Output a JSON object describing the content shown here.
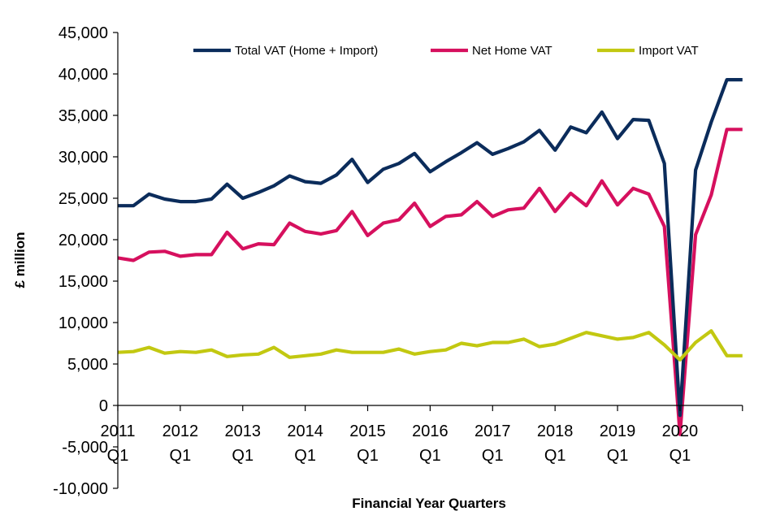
{
  "chart_data": {
    "type": "line",
    "title": "",
    "xlabel": "Financial Year Quarters",
    "ylabel": "£ million",
    "ylim": [
      -10000,
      45000
    ],
    "yticks": [
      "-10,000",
      "-5,000",
      "0",
      "5,000",
      "10,000",
      "15,000",
      "20,000",
      "25,000",
      "30,000",
      "35,000",
      "40,000",
      "45,000"
    ],
    "year_labels": [
      "2011",
      "2012",
      "2013",
      "2014",
      "2015",
      "2016",
      "2017",
      "2018",
      "2019",
      "2020"
    ],
    "quarter_labels": [
      "Q1",
      "Q1",
      "Q1",
      "Q1",
      "Q1",
      "Q1",
      "Q1",
      "Q1",
      "Q1",
      "Q1"
    ],
    "legend_position": "top",
    "grid": false,
    "x": [
      "2011 Q1",
      "2011 Q2",
      "2011 Q3",
      "2011 Q4",
      "2012 Q1",
      "2012 Q2",
      "2012 Q3",
      "2012 Q4",
      "2013 Q1",
      "2013 Q2",
      "2013 Q3",
      "2013 Q4",
      "2014 Q1",
      "2014 Q2",
      "2014 Q3",
      "2014 Q4",
      "2015 Q1",
      "2015 Q2",
      "2015 Q3",
      "2015 Q4",
      "2016 Q1",
      "2016 Q2",
      "2016 Q3",
      "2016 Q4",
      "2017 Q1",
      "2017 Q2",
      "2017 Q3",
      "2017 Q4",
      "2018 Q1",
      "2018 Q2",
      "2018 Q3",
      "2018 Q4",
      "2019 Q1",
      "2019 Q2",
      "2019 Q3",
      "2019 Q4",
      "2020 Q1",
      "2020 Q2",
      "2020 Q3",
      "2020 Q4",
      "2021 Q1"
    ],
    "series": [
      {
        "name": "Total VAT (Home + Import)",
        "color": "#0b2c5b",
        "values": [
          24100,
          24100,
          25500,
          24900,
          24600,
          24600,
          24900,
          26700,
          25000,
          25700,
          26500,
          27700,
          27000,
          26800,
          27800,
          29700,
          26900,
          28500,
          29200,
          30400,
          28200,
          29400,
          30500,
          31700,
          30300,
          31000,
          31800,
          33200,
          30800,
          33600,
          32900,
          35400,
          32200,
          34500,
          34400,
          29200,
          -1200,
          28400,
          34200,
          39300,
          39300
        ]
      },
      {
        "name": "Net Home VAT",
        "color": "#d6105e",
        "values": [
          17800,
          17500,
          18500,
          18600,
          18000,
          18200,
          18200,
          20900,
          18900,
          19500,
          19400,
          22000,
          21000,
          20700,
          21100,
          23400,
          20500,
          22000,
          22400,
          24400,
          21600,
          22800,
          23000,
          24600,
          22800,
          23600,
          23800,
          26200,
          23400,
          25600,
          24100,
          27100,
          24200,
          26200,
          25500,
          21600,
          -3500,
          20600,
          25400,
          33300,
          33300
        ]
      },
      {
        "name": "Import VAT",
        "color": "#c2c811",
        "values": [
          6400,
          6500,
          7000,
          6300,
          6500,
          6400,
          6700,
          5900,
          6100,
          6200,
          7000,
          5800,
          6000,
          6200,
          6700,
          6400,
          6400,
          6400,
          6800,
          6200,
          6500,
          6700,
          7500,
          7200,
          7600,
          7600,
          8000,
          7100,
          7400,
          8100,
          8800,
          8400,
          8000,
          8200,
          8800,
          7300,
          5500,
          7600,
          9000,
          6000,
          6000
        ]
      }
    ]
  }
}
